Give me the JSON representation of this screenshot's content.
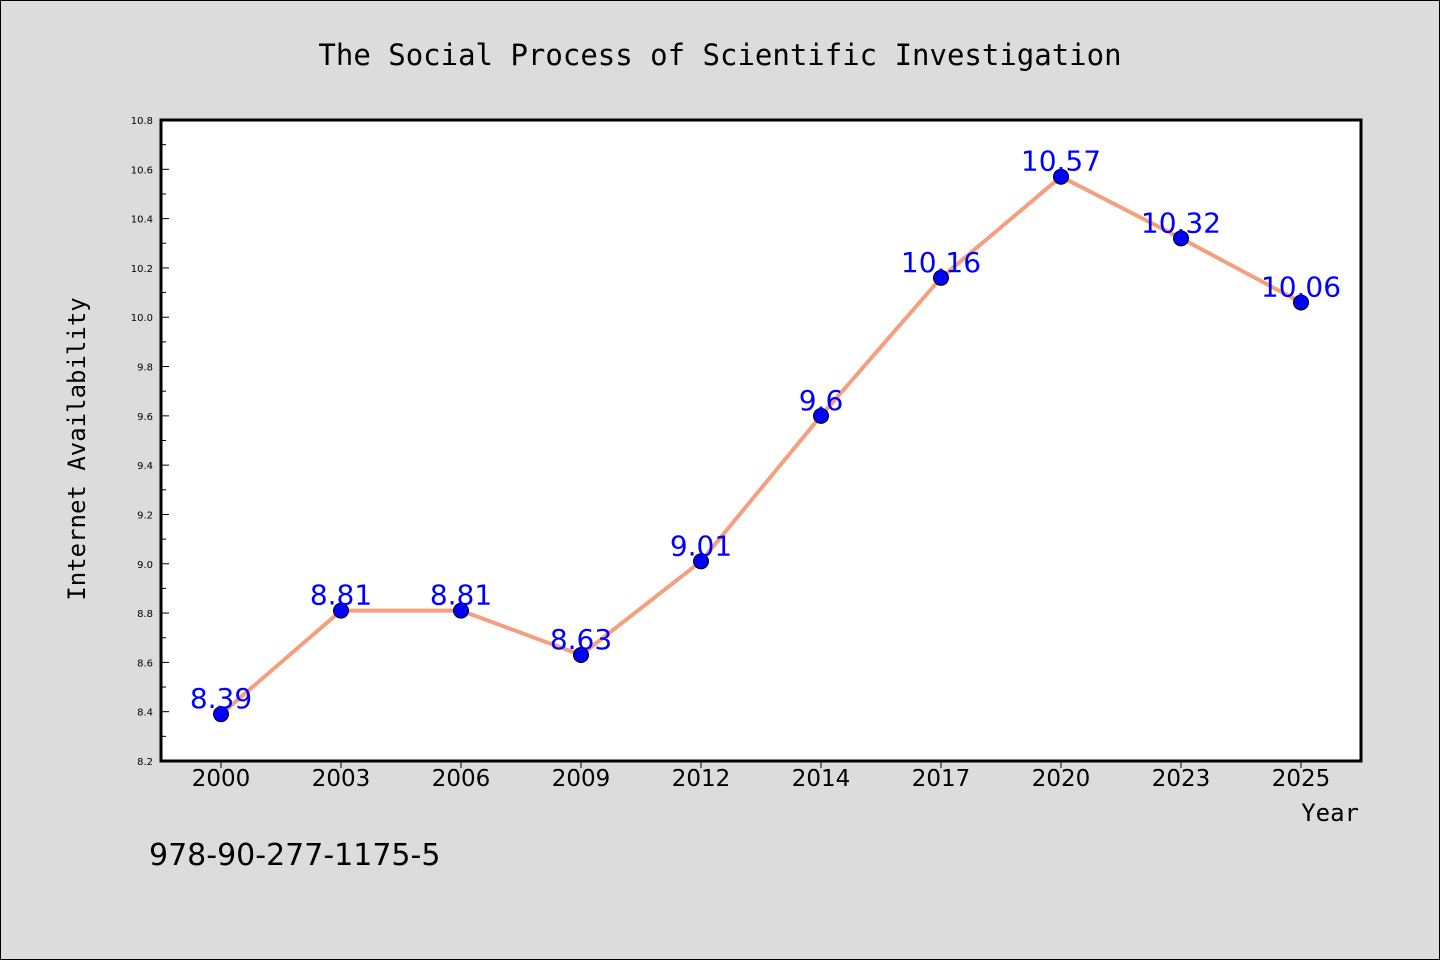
{
  "chart_data": {
    "type": "line",
    "title": "The Social Process of Scientific Investigation",
    "xlabel": "Year",
    "ylabel": "Internet Availability",
    "categories": [
      "2000",
      "2003",
      "2006",
      "2009",
      "2012",
      "2014",
      "2017",
      "2020",
      "2023",
      "2025"
    ],
    "series": [
      {
        "values": [
          8.39,
          8.81,
          8.81,
          8.63,
          9.01,
          9.6,
          10.16,
          10.57,
          10.32,
          10.06
        ],
        "labels": [
          "8.39",
          "8.81",
          "8.81",
          "8.63",
          "9.01",
          "9.6",
          "10.16",
          "10.57",
          "10.32",
          "10.06"
        ],
        "line_color": "#f4a07f",
        "marker_color": "#0000ff"
      }
    ],
    "ylim": [
      8.2,
      10.8
    ],
    "yticks": [
      "8.2",
      "8.4",
      "8.6",
      "8.8",
      "9.0",
      "9.2",
      "9.4",
      "9.6",
      "9.8",
      "10.0",
      "10.2",
      "10.4",
      "10.6",
      "10.8"
    ],
    "grid": false,
    "legend": "none"
  },
  "footer": {
    "code": "978-90-277-1175-5"
  }
}
